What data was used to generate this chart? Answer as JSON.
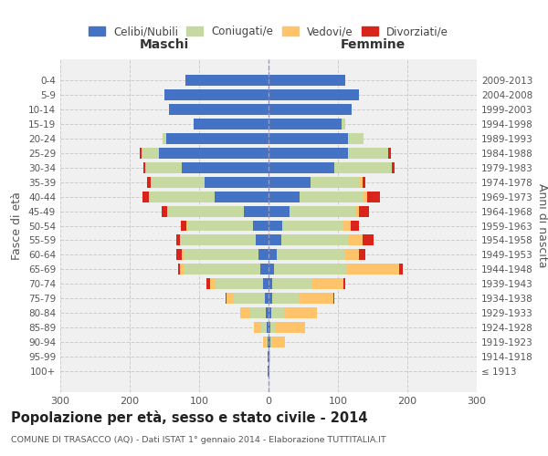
{
  "age_groups": [
    "100+",
    "95-99",
    "90-94",
    "85-89",
    "80-84",
    "75-79",
    "70-74",
    "65-69",
    "60-64",
    "55-59",
    "50-54",
    "45-49",
    "40-44",
    "35-39",
    "30-34",
    "25-29",
    "20-24",
    "15-19",
    "10-14",
    "5-9",
    "0-4"
  ],
  "birth_years": [
    "≤ 1913",
    "1914-1918",
    "1919-1923",
    "1924-1928",
    "1929-1933",
    "1934-1938",
    "1939-1943",
    "1944-1948",
    "1949-1953",
    "1954-1958",
    "1959-1963",
    "1964-1968",
    "1969-1973",
    "1974-1978",
    "1979-1983",
    "1984-1988",
    "1989-1993",
    "1994-1998",
    "1999-2003",
    "2004-2008",
    "2009-2013"
  ],
  "maschi_celibi": [
    1,
    1,
    1,
    3,
    4,
    5,
    8,
    12,
    15,
    18,
    22,
    35,
    78,
    92,
    125,
    158,
    148,
    108,
    143,
    150,
    120
  ],
  "maschi_coniugati": [
    0,
    0,
    3,
    8,
    22,
    45,
    68,
    110,
    108,
    108,
    95,
    110,
    95,
    78,
    52,
    25,
    5,
    0,
    0,
    0,
    0
  ],
  "maschi_vedovi": [
    0,
    0,
    4,
    10,
    15,
    10,
    8,
    5,
    2,
    2,
    1,
    1,
    0,
    0,
    0,
    0,
    0,
    0,
    0,
    0,
    0
  ],
  "maschi_divorziati": [
    0,
    0,
    0,
    0,
    0,
    2,
    5,
    3,
    8,
    5,
    8,
    8,
    8,
    5,
    3,
    2,
    0,
    0,
    0,
    0,
    0
  ],
  "femmine_nubili": [
    1,
    1,
    2,
    3,
    4,
    5,
    5,
    8,
    12,
    18,
    20,
    30,
    45,
    60,
    95,
    115,
    115,
    105,
    120,
    130,
    110
  ],
  "femmine_coniugate": [
    0,
    0,
    2,
    8,
    18,
    38,
    58,
    105,
    98,
    98,
    88,
    95,
    92,
    72,
    82,
    58,
    22,
    5,
    0,
    0,
    0
  ],
  "femmine_vedove": [
    0,
    2,
    20,
    42,
    48,
    50,
    45,
    75,
    20,
    20,
    10,
    5,
    5,
    3,
    0,
    0,
    0,
    0,
    0,
    0,
    0
  ],
  "femmine_divorziate": [
    0,
    0,
    0,
    0,
    0,
    2,
    2,
    5,
    10,
    15,
    12,
    15,
    18,
    5,
    5,
    3,
    0,
    0,
    0,
    0,
    0
  ],
  "colors": {
    "celibi": "#4472c4",
    "coniugati": "#c5d9a0",
    "vedovi": "#ffc469",
    "divorziati": "#d9241c"
  },
  "title": "Popolazione per età, sesso e stato civile - 2014",
  "subtitle": "COMUNE DI TRASACCO (AQ) - Dati ISTAT 1° gennaio 2014 - Elaborazione TUTTITALIA.IT",
  "ylabel_left": "Fasce di età",
  "ylabel_right": "Anni di nascita",
  "label_maschi": "Maschi",
  "label_femmine": "Femmine",
  "xlim": 300,
  "bg_color": "#f0f0f0",
  "grid_color": "#cccccc",
  "legend_labels": [
    "Celibi/Nubili",
    "Coniugati/e",
    "Vedovi/e",
    "Divorziati/e"
  ]
}
